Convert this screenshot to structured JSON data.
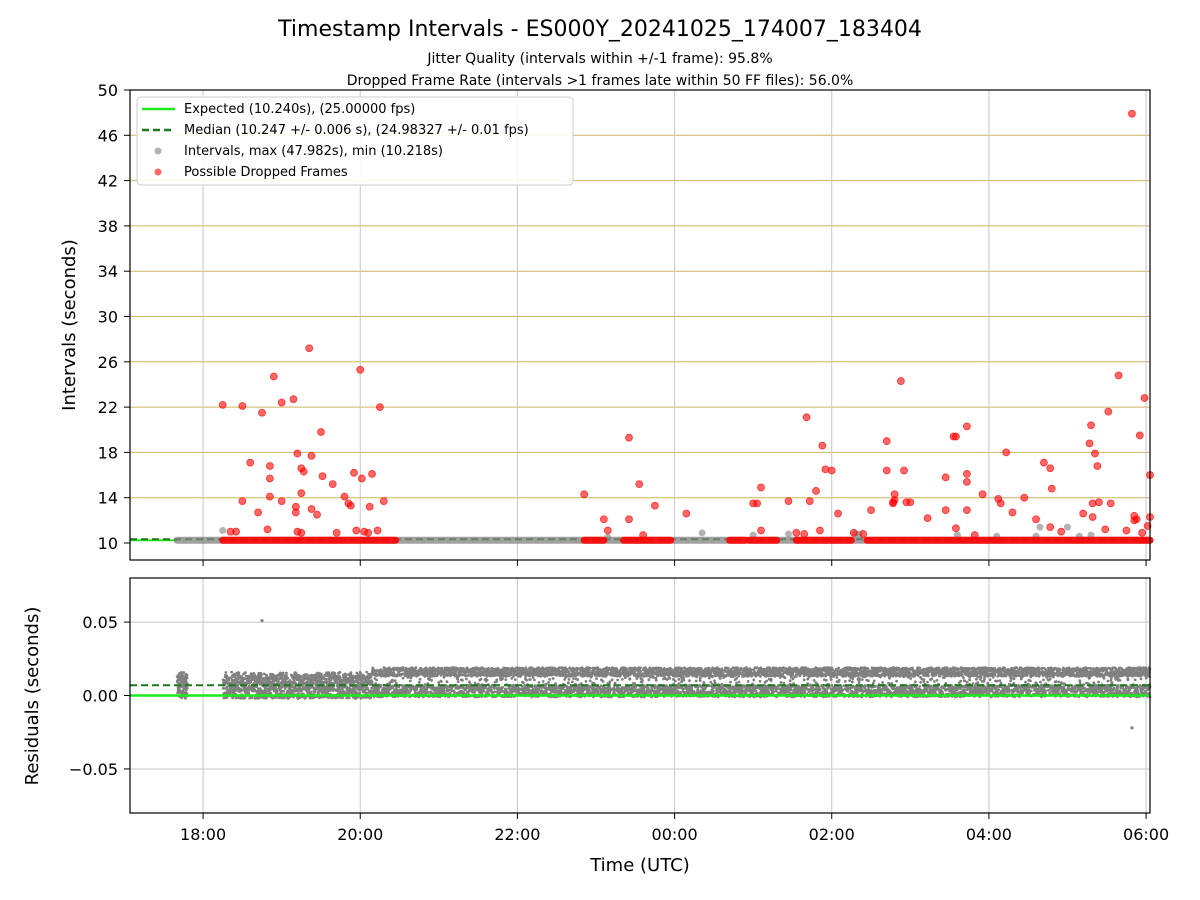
{
  "chart_data": {
    "type": "scatter",
    "title": "Timestamp Intervals - ES000Y_20241025_174007_183404",
    "subtitles": [
      "Jitter Quality (intervals within +/-1 frame): 95.8%",
      "Dropped Frame Rate (intervals >1 frames late within 50 FF files): 56.0%"
    ],
    "xlabel": "Time (UTC)",
    "x_ticks": [
      "18:00",
      "20:00",
      "22:00",
      "00:00",
      "02:00",
      "04:00",
      "06:00"
    ],
    "x_range_hours": [
      17.07,
      30.05
    ],
    "x_data_hours": [
      17.67,
      30.05
    ],
    "grid": true,
    "colors": {
      "expected": "#1ee81e",
      "median": "#1a7a1a",
      "intervals": "#808080",
      "dropped": "#ff0000",
      "gold_grid": "#cdb461",
      "grid": "#c8c8c8"
    },
    "top": {
      "ylabel": "Intervals (seconds)",
      "ylim": [
        8.5,
        50
      ],
      "yticks": [
        10,
        14,
        18,
        22,
        26,
        30,
        34,
        38,
        42,
        46,
        50
      ],
      "expected": 10.24,
      "median": 10.247,
      "legend": {
        "placement": "upper-left",
        "entries": [
          "Expected (10.240s), (25.00000 fps)",
          "Median (10.247 +/- 0.006 s), (24.98327 +/- 0.01 fps)",
          "Intervals, max (47.982s), min (10.218s)",
          "Possible Dropped Frames"
        ]
      },
      "gray_points": [
        [
          18.25,
          11.1
        ],
        [
          23.15,
          10.5
        ],
        [
          24.35,
          10.9
        ],
        [
          25.0,
          10.7
        ],
        [
          25.45,
          10.8
        ],
        [
          26.3,
          10.8
        ],
        [
          26.35,
          10.8
        ],
        [
          27.6,
          10.7
        ],
        [
          28.1,
          10.6
        ],
        [
          28.6,
          10.6
        ],
        [
          29.15,
          10.6
        ],
        [
          28.65,
          11.4
        ],
        [
          29.0,
          11.4
        ],
        [
          29.3,
          10.7
        ]
      ],
      "dropped_points": [
        [
          18.25,
          22.2
        ],
        [
          18.5,
          22.1
        ],
        [
          18.75,
          21.5
        ],
        [
          18.9,
          24.7
        ],
        [
          19.0,
          22.4
        ],
        [
          19.15,
          22.7
        ],
        [
          19.35,
          27.2
        ],
        [
          19.5,
          19.8
        ],
        [
          19.2,
          17.9
        ],
        [
          19.38,
          17.7
        ],
        [
          18.6,
          17.1
        ],
        [
          18.85,
          16.8
        ],
        [
          18.85,
          15.7
        ],
        [
          19.25,
          16.6
        ],
        [
          19.28,
          16.3
        ],
        [
          19.52,
          15.9
        ],
        [
          19.65,
          15.2
        ],
        [
          18.5,
          13.7
        ],
        [
          18.7,
          12.7
        ],
        [
          18.85,
          14.1
        ],
        [
          19.0,
          13.7
        ],
        [
          19.18,
          13.2
        ],
        [
          19.18,
          12.7
        ],
        [
          19.38,
          13.0
        ],
        [
          19.45,
          12.5
        ],
        [
          19.25,
          14.4
        ],
        [
          19.8,
          14.1
        ],
        [
          19.85,
          13.5
        ],
        [
          19.88,
          13.3
        ],
        [
          18.35,
          11.0
        ],
        [
          18.42,
          11.0
        ],
        [
          18.82,
          11.2
        ],
        [
          19.2,
          11.0
        ],
        [
          19.25,
          10.9
        ],
        [
          19.7,
          10.9
        ],
        [
          19.92,
          16.2
        ],
        [
          20.0,
          25.3
        ],
        [
          20.02,
          15.7
        ],
        [
          20.15,
          16.1
        ],
        [
          20.25,
          22.0
        ],
        [
          20.3,
          13.7
        ],
        [
          20.12,
          13.2
        ],
        [
          19.95,
          11.1
        ],
        [
          20.05,
          11.0
        ],
        [
          20.1,
          10.9
        ],
        [
          20.22,
          11.1
        ],
        [
          22.85,
          14.3
        ],
        [
          23.1,
          12.1
        ],
        [
          23.15,
          11.1
        ],
        [
          23.42,
          19.3
        ],
        [
          23.42,
          12.1
        ],
        [
          23.55,
          15.2
        ],
        [
          23.75,
          13.3
        ],
        [
          23.6,
          10.7
        ],
        [
          24.15,
          12.6
        ],
        [
          25.0,
          13.5
        ],
        [
          25.05,
          13.5
        ],
        [
          25.1,
          14.9
        ],
        [
          25.1,
          11.1
        ],
        [
          25.45,
          13.7
        ],
        [
          25.55,
          10.9
        ],
        [
          25.65,
          10.8
        ],
        [
          25.72,
          13.7
        ],
        [
          25.8,
          14.6
        ],
        [
          25.85,
          11.1
        ],
        [
          25.68,
          21.1
        ],
        [
          25.88,
          18.6
        ],
        [
          25.92,
          16.5
        ],
        [
          26.0,
          16.4
        ],
        [
          26.08,
          12.6
        ],
        [
          26.28,
          10.9
        ],
        [
          26.4,
          10.8
        ],
        [
          26.5,
          12.9
        ],
        [
          26.7,
          19.0
        ],
        [
          26.7,
          16.4
        ],
        [
          26.78,
          13.6
        ],
        [
          26.8,
          13.8
        ],
        [
          26.8,
          14.3
        ],
        [
          26.78,
          13.5
        ],
        [
          26.88,
          24.3
        ],
        [
          26.92,
          16.4
        ],
        [
          26.95,
          13.6
        ],
        [
          27.0,
          13.6
        ],
        [
          27.22,
          12.2
        ],
        [
          27.45,
          12.9
        ],
        [
          27.45,
          15.8
        ],
        [
          27.55,
          19.4
        ],
        [
          27.58,
          19.4
        ],
        [
          27.58,
          11.3
        ],
        [
          27.72,
          20.3
        ],
        [
          27.72,
          16.1
        ],
        [
          27.72,
          15.4
        ],
        [
          27.72,
          12.9
        ],
        [
          27.82,
          10.7
        ],
        [
          27.92,
          14.3
        ],
        [
          28.12,
          13.9
        ],
        [
          28.15,
          13.5
        ],
        [
          28.22,
          18.0
        ],
        [
          28.3,
          12.7
        ],
        [
          28.45,
          14.0
        ],
        [
          28.6,
          12.1
        ],
        [
          28.7,
          17.1
        ],
        [
          28.78,
          16.6
        ],
        [
          28.8,
          14.8
        ],
        [
          28.78,
          11.4
        ],
        [
          28.92,
          11.0
        ],
        [
          29.2,
          12.6
        ],
        [
          29.3,
          20.4
        ],
        [
          29.28,
          18.8
        ],
        [
          29.35,
          17.9
        ],
        [
          29.38,
          16.8
        ],
        [
          29.32,
          13.5
        ],
        [
          29.4,
          13.6
        ],
        [
          29.32,
          12.3
        ],
        [
          29.48,
          11.2
        ],
        [
          29.52,
          21.6
        ],
        [
          29.55,
          13.5
        ],
        [
          29.65,
          24.8
        ],
        [
          29.75,
          11.1
        ],
        [
          29.82,
          47.9
        ],
        [
          29.85,
          12.4
        ],
        [
          29.88,
          12.1
        ],
        [
          29.85,
          12.0
        ],
        [
          29.92,
          19.5
        ],
        [
          29.98,
          22.8
        ],
        [
          30.05,
          16.0
        ],
        [
          30.02,
          11.5
        ],
        [
          30.05,
          12.3
        ],
        [
          29.95,
          10.9
        ]
      ]
    },
    "bottom": {
      "ylabel": "Residuals (seconds)",
      "ylim": [
        -0.08,
        0.08
      ],
      "yticks": [
        0.05,
        0.0,
        -0.05
      ],
      "ytick_labels": [
        "0.05",
        "0.00",
        "−0.05"
      ],
      "expected_residual": 0.0,
      "median_residual": 0.007,
      "outliers": [
        [
          18.75,
          0.051
        ],
        [
          29.82,
          -0.022
        ]
      ]
    }
  }
}
